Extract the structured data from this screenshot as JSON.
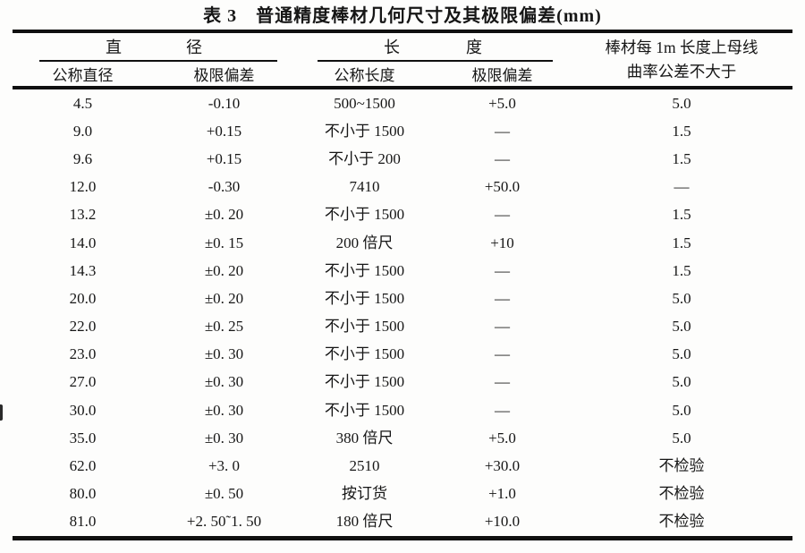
{
  "table": {
    "title": "表 3　普通精度棒材几何尺寸及其极限偏差(mm)",
    "diameter_group": [
      "直",
      "径"
    ],
    "length_group": [
      "长",
      "度"
    ],
    "curvature_header_line1": "棒材每 1m 长度上母线",
    "curvature_header_line2": "曲率公差不大于",
    "sub_headers": [
      "公称直径",
      "极限偏差",
      "公称长度",
      "极限偏差"
    ],
    "rows": [
      [
        "4.5",
        "-0.10",
        "500~1500",
        "+5.0",
        "5.0"
      ],
      [
        "9.0",
        "+0.15",
        "不小于 1500",
        "—",
        "1.5"
      ],
      [
        "9.6",
        "+0.15",
        "不小于 200",
        "—",
        "1.5"
      ],
      [
        "12.0",
        "-0.30",
        "7410",
        "+50.0",
        "—"
      ],
      [
        "13.2",
        "±0. 20",
        "不小于 1500",
        "—",
        "1.5"
      ],
      [
        "14.0",
        "±0. 15",
        "200 倍尺",
        "+10",
        "1.5"
      ],
      [
        "14.3",
        "±0. 20",
        "不小于 1500",
        "—",
        "1.5"
      ],
      [
        "20.0",
        "±0. 20",
        "不小于 1500",
        "—",
        "5.0"
      ],
      [
        "22.0",
        "±0. 25",
        "不小于 1500",
        "—",
        "5.0"
      ],
      [
        "23.0",
        "±0. 30",
        "不小于 1500",
        "—",
        "5.0"
      ],
      [
        "27.0",
        "±0. 30",
        "不小于 1500",
        "—",
        "5.0"
      ],
      [
        "30.0",
        "±0. 30",
        "不小于 1500",
        "—",
        "5.0"
      ],
      [
        "35.0",
        "±0. 30",
        "380 倍尺",
        "+5.0",
        "5.0"
      ],
      [
        "62.0",
        "+3. 0",
        "2510",
        "+30.0",
        "不检验"
      ],
      [
        "80.0",
        "±0. 50",
        "按订货",
        "+1.0",
        "不检验"
      ],
      [
        "81.0",
        "+2. 50˜1. 50",
        "180 倍尺",
        "+10.0",
        "不检验"
      ]
    ]
  }
}
